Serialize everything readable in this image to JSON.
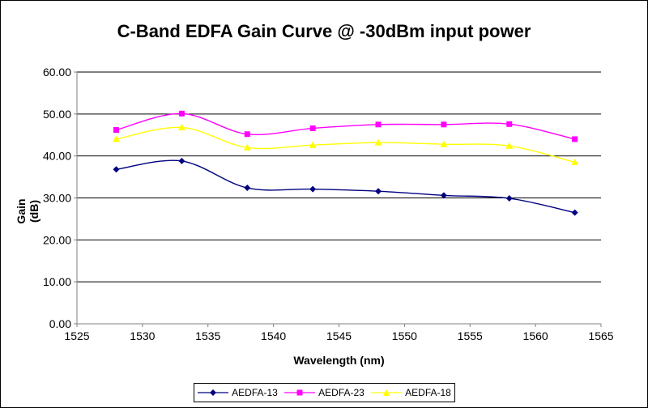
{
  "chart_data": {
    "type": "line",
    "title": "C-Band EDFA Gain Curve @ -30dBm input power",
    "xlabel": "Wavelength (nm)",
    "ylabel": "Gain (dB)",
    "xlim": [
      1525,
      1565
    ],
    "ylim": [
      0,
      60
    ],
    "x_ticks": [
      "1525",
      "1530",
      "1535",
      "1540",
      "1545",
      "1550",
      "1555",
      "1560",
      "1565"
    ],
    "y_ticks": [
      "0.00",
      "10.00",
      "20.00",
      "30.00",
      "40.00",
      "50.00",
      "60.00"
    ],
    "grid": "horizontal",
    "legend_position": "bottom",
    "x": [
      1528,
      1533,
      1538,
      1543,
      1548,
      1553,
      1558,
      1563
    ],
    "series": [
      {
        "name": "AEDFA-13",
        "color": "#000080",
        "marker": "diamond",
        "values": [
          36.8,
          38.8,
          32.4,
          32.1,
          31.6,
          30.6,
          29.9,
          26.5
        ]
      },
      {
        "name": "AEDFA-23",
        "color": "#ff00ff",
        "marker": "square",
        "values": [
          46.2,
          50.1,
          45.2,
          46.6,
          47.5,
          47.5,
          47.6,
          44.0
        ]
      },
      {
        "name": "AEDFA-18",
        "color": "#ffff00",
        "marker": "triangle",
        "values": [
          44.0,
          46.8,
          42.0,
          42.6,
          43.2,
          42.8,
          42.4,
          38.5
        ]
      }
    ]
  }
}
